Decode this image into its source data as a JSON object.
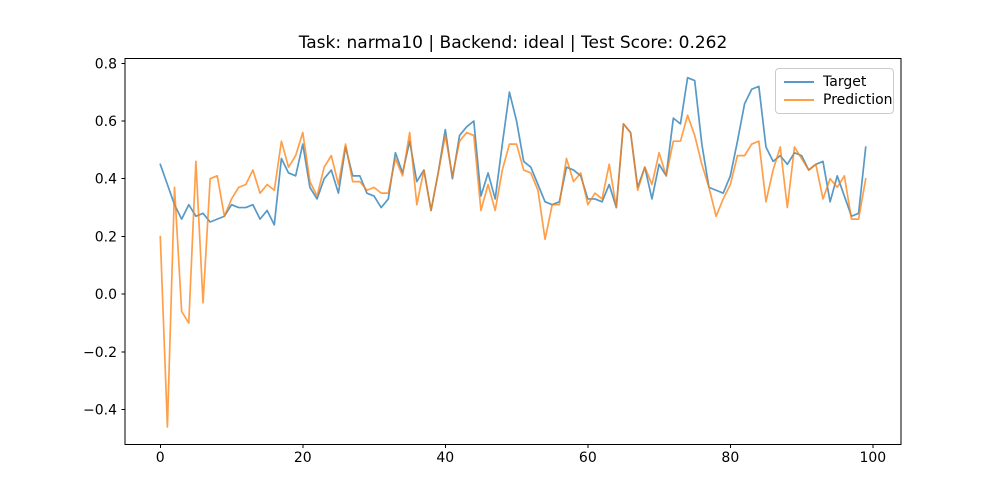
{
  "figure": {
    "background": "#ffffff",
    "frame_color": "#000000",
    "tick_label_color": "#000000"
  },
  "chart_data": {
    "type": "line",
    "title": "Task: narma10 | Backend: ideal | Test Score: 0.262",
    "xlabel": "",
    "ylabel": "",
    "x_values": "index 0..99",
    "xlim": [
      -4.95,
      103.95
    ],
    "ylim": [
      -0.521,
      0.8166
    ],
    "xticks": [
      0,
      20,
      40,
      60,
      80,
      100
    ],
    "yticks": [
      -0.4,
      -0.2,
      0.0,
      0.2,
      0.4,
      0.6,
      0.8
    ],
    "grid": false,
    "legend_position": "upper right",
    "line_alpha": 0.75,
    "series": [
      {
        "name": "Target",
        "color": "#1f77b4",
        "values": [
          0.45,
          0.38,
          0.31,
          0.26,
          0.31,
          0.27,
          0.28,
          0.25,
          0.26,
          0.27,
          0.31,
          0.3,
          0.3,
          0.31,
          0.26,
          0.29,
          0.24,
          0.47,
          0.42,
          0.41,
          0.52,
          0.37,
          0.33,
          0.4,
          0.43,
          0.35,
          0.51,
          0.41,
          0.41,
          0.35,
          0.34,
          0.3,
          0.33,
          0.49,
          0.42,
          0.53,
          0.39,
          0.43,
          0.29,
          0.42,
          0.57,
          0.4,
          0.55,
          0.58,
          0.6,
          0.34,
          0.42,
          0.33,
          0.52,
          0.7,
          0.6,
          0.46,
          0.44,
          0.38,
          0.32,
          0.31,
          0.32,
          0.44,
          0.43,
          0.41,
          0.33,
          0.33,
          0.32,
          0.38,
          0.3,
          0.59,
          0.56,
          0.37,
          0.44,
          0.33,
          0.45,
          0.41,
          0.61,
          0.59,
          0.75,
          0.74,
          0.52,
          0.37,
          0.36,
          0.35,
          0.41,
          0.53,
          0.66,
          0.71,
          0.72,
          0.51,
          0.46,
          0.48,
          0.45,
          0.49,
          0.48,
          0.43,
          0.45,
          0.46,
          0.32,
          0.41,
          0.34,
          0.27,
          0.28,
          0.51
        ]
      },
      {
        "name": "Prediction",
        "color": "#ff7f0e",
        "values": [
          0.2,
          -0.46,
          0.37,
          -0.06,
          -0.1,
          0.46,
          -0.03,
          0.4,
          0.41,
          0.27,
          0.33,
          0.37,
          0.38,
          0.43,
          0.35,
          0.38,
          0.36,
          0.53,
          0.44,
          0.48,
          0.56,
          0.39,
          0.34,
          0.44,
          0.48,
          0.38,
          0.52,
          0.39,
          0.39,
          0.36,
          0.37,
          0.35,
          0.35,
          0.47,
          0.41,
          0.56,
          0.31,
          0.43,
          0.29,
          0.42,
          0.55,
          0.41,
          0.53,
          0.56,
          0.55,
          0.29,
          0.38,
          0.29,
          0.43,
          0.52,
          0.52,
          0.43,
          0.42,
          0.36,
          0.19,
          0.31,
          0.31,
          0.47,
          0.39,
          0.42,
          0.31,
          0.35,
          0.33,
          0.45,
          0.3,
          0.59,
          0.56,
          0.36,
          0.44,
          0.38,
          0.49,
          0.41,
          0.53,
          0.53,
          0.62,
          0.55,
          0.45,
          0.37,
          0.27,
          0.33,
          0.38,
          0.48,
          0.48,
          0.52,
          0.53,
          0.32,
          0.43,
          0.51,
          0.3,
          0.51,
          0.47,
          0.43,
          0.45,
          0.33,
          0.4,
          0.37,
          0.41,
          0.26,
          0.26,
          0.4
        ]
      }
    ]
  }
}
